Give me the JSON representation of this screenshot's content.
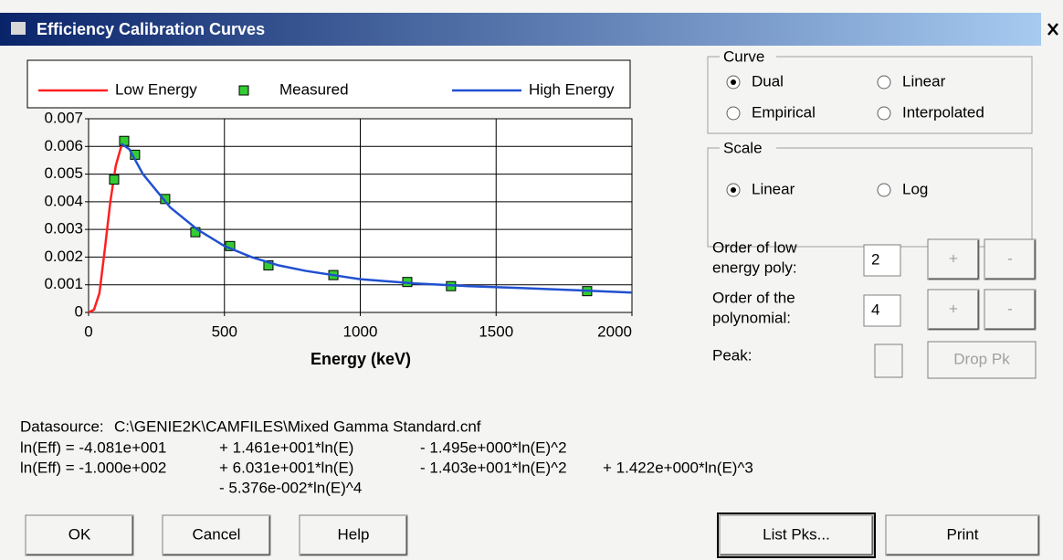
{
  "window": {
    "title": "Efficiency Calibration Curves"
  },
  "chart_data": {
    "type": "line",
    "xlabel": "Energy (keV)",
    "xlim": [
      0,
      2000
    ],
    "xticks": [
      0,
      500,
      1000,
      1500,
      2000
    ],
    "ylim": [
      0,
      0.007
    ],
    "yticks": [
      0,
      0.001,
      0.002,
      0.003,
      0.004,
      0.005,
      0.006,
      0.007
    ],
    "grid": true,
    "series": [
      {
        "name": "Low Energy",
        "color": "#ff2020",
        "kind": "line",
        "x": [
          0,
          20,
          40,
          60,
          80,
          100,
          120,
          130
        ],
        "values": [
          0,
          0.0001,
          0.0007,
          0.0023,
          0.004,
          0.0053,
          0.006,
          0.0061
        ]
      },
      {
        "name": "Measured",
        "color": "#33cc33",
        "kind": "marker",
        "x": [
          94,
          131,
          171,
          282,
          393,
          521,
          662,
          901,
          1173,
          1334,
          1835
        ],
        "values": [
          0.0048,
          0.0062,
          0.0057,
          0.0041,
          0.0029,
          0.0024,
          0.0017,
          0.00135,
          0.0011,
          0.00095,
          0.00077
        ]
      },
      {
        "name": "High Energy",
        "color": "#2050d0",
        "kind": "line",
        "x": [
          120,
          150,
          200,
          300,
          400,
          500,
          600,
          700,
          800,
          1000,
          1200,
          1400,
          1600,
          1800,
          2000
        ],
        "values": [
          0.0061,
          0.0059,
          0.005,
          0.0038,
          0.003,
          0.0024,
          0.002,
          0.0017,
          0.0015,
          0.0012,
          0.00105,
          0.00095,
          0.00088,
          0.0008,
          0.00072
        ]
      }
    ]
  },
  "curve_group": {
    "title": "Curve",
    "options": [
      {
        "label": "Dual",
        "checked": true
      },
      {
        "label": "Linear",
        "checked": false
      },
      {
        "label": "Empirical",
        "checked": false
      },
      {
        "label": "Interpolated",
        "checked": false
      }
    ]
  },
  "scale_group": {
    "title": "Scale",
    "options": [
      {
        "label": "Linear",
        "checked": true
      },
      {
        "label": "Log",
        "checked": false
      }
    ]
  },
  "controls": [
    {
      "lines": [
        "Order of low",
        "energy poly:"
      ],
      "value": "2",
      "plus": "+",
      "minus": "-"
    },
    {
      "lines": [
        "Order of the",
        "polynomial:"
      ],
      "value": "4",
      "plus": "+",
      "minus": "-"
    }
  ],
  "peak": {
    "label": "Peak:",
    "button": "Drop Pk"
  },
  "datasource": {
    "label": "Datasource:",
    "path": "C:\\GENIE2K\\CAMFILES\\Mixed Gamma Standard.cnf"
  },
  "equations": [
    [
      "ln(Eff) = -4.081e+001",
      "+ 1.461e+001*ln(E)",
      "- 1.495e+000*ln(E)^2"
    ],
    [
      "ln(Eff) = -1.000e+002",
      "+ 6.031e+001*ln(E)",
      "- 1.403e+001*ln(E)^2",
      "+ 1.422e+000*ln(E)^3"
    ],
    [
      "",
      "- 5.376e-002*ln(E)^4"
    ]
  ],
  "buttons": [
    "OK",
    "Cancel",
    "Help",
    "List Pks...",
    "Print"
  ]
}
